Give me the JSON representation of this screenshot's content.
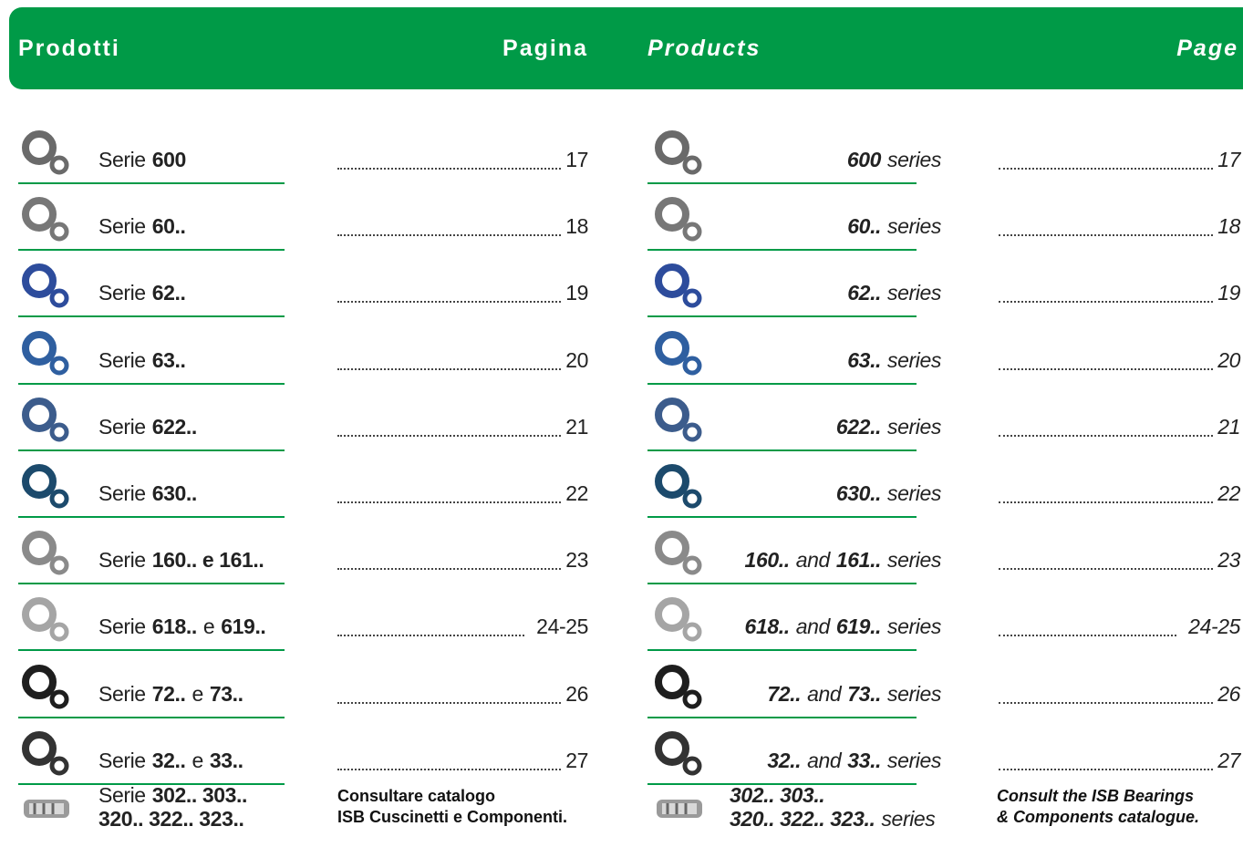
{
  "header": {
    "left_title": "Prodotti",
    "left_page": "Pagina",
    "right_title": "Products",
    "right_page": "Page"
  },
  "rows": [
    {
      "it": [
        [
          {
            "text": "Serie"
          },
          {
            "text": "600",
            "bold": true
          }
        ]
      ],
      "en": [
        [
          {
            "text": "600",
            "bold": true
          },
          {
            "text": "series"
          }
        ]
      ],
      "page": "17"
    },
    {
      "it": [
        [
          {
            "text": "Serie"
          },
          {
            "text": "60..",
            "bold": true
          }
        ]
      ],
      "en": [
        [
          {
            "text": "60..",
            "bold": true
          },
          {
            "text": "series"
          }
        ]
      ],
      "page": "18"
    },
    {
      "it": [
        [
          {
            "text": "Serie"
          },
          {
            "text": "62..",
            "bold": true
          }
        ]
      ],
      "en": [
        [
          {
            "text": "62..",
            "bold": true
          },
          {
            "text": "series"
          }
        ]
      ],
      "page": "19"
    },
    {
      "it": [
        [
          {
            "text": "Serie"
          },
          {
            "text": "63..",
            "bold": true
          }
        ]
      ],
      "en": [
        [
          {
            "text": "63..",
            "bold": true
          },
          {
            "text": "series"
          }
        ]
      ],
      "page": "20"
    },
    {
      "it": [
        [
          {
            "text": "Serie"
          },
          {
            "text": "622..",
            "bold": true
          }
        ]
      ],
      "en": [
        [
          {
            "text": "622..",
            "bold": true
          },
          {
            "text": "series"
          }
        ]
      ],
      "page": "21"
    },
    {
      "it": [
        [
          {
            "text": "Serie"
          },
          {
            "text": "630..",
            "bold": true
          }
        ]
      ],
      "en": [
        [
          {
            "text": "630..",
            "bold": true
          },
          {
            "text": "series"
          }
        ]
      ],
      "page": "22"
    },
    {
      "it": [
        [
          {
            "text": "Serie"
          },
          {
            "text": "160.. e 161..",
            "bold": true
          }
        ]
      ],
      "en": [
        [
          {
            "text": "160..",
            "bold": true
          },
          {
            "text": "and"
          },
          {
            "text": "161..",
            "bold": true
          },
          {
            "text": "series"
          }
        ]
      ],
      "page": "23"
    },
    {
      "it": [
        [
          {
            "text": "Serie"
          },
          {
            "text": "618..",
            "bold": true
          },
          {
            "text": "e"
          },
          {
            "text": "619..",
            "bold": true
          }
        ]
      ],
      "en": [
        [
          {
            "text": "618..",
            "bold": true
          },
          {
            "text": "and"
          },
          {
            "text": "619..",
            "bold": true
          },
          {
            "text": "series"
          }
        ]
      ],
      "page": "24-25"
    },
    {
      "it": [
        [
          {
            "text": "Serie"
          },
          {
            "text": "72..",
            "bold": true
          },
          {
            "text": "e"
          },
          {
            "text": "73..",
            "bold": true
          }
        ]
      ],
      "en": [
        [
          {
            "text": "72..",
            "bold": true
          },
          {
            "text": "and"
          },
          {
            "text": "73..",
            "bold": true
          },
          {
            "text": "series"
          }
        ]
      ],
      "page": "26"
    },
    {
      "it": [
        [
          {
            "text": "Serie"
          },
          {
            "text": "32..",
            "bold": true
          },
          {
            "text": "e"
          },
          {
            "text": "33..",
            "bold": true
          }
        ]
      ],
      "en": [
        [
          {
            "text": "32..",
            "bold": true
          },
          {
            "text": "and"
          },
          {
            "text": "33..",
            "bold": true
          },
          {
            "text": "series"
          }
        ]
      ],
      "page": "27"
    }
  ],
  "last_row": {
    "it": [
      [
        {
          "text": "Serie"
        },
        {
          "text": "302.. 303..",
          "bold": true
        }
      ],
      [
        {
          "text": "320.. 322.. 323..",
          "bold": true
        }
      ]
    ],
    "en": [
      [
        {
          "text": "302.. 303..",
          "bold": true
        }
      ],
      [
        {
          "text": "320.. 322.. 323..",
          "bold": true
        },
        {
          "text": "series"
        }
      ]
    ],
    "note_it": [
      "Consultare catalogo",
      "ISB Cuscinetti e Componenti."
    ],
    "note_en": [
      "Consult the ISB Bearings",
      "& Components catalogue."
    ]
  }
}
